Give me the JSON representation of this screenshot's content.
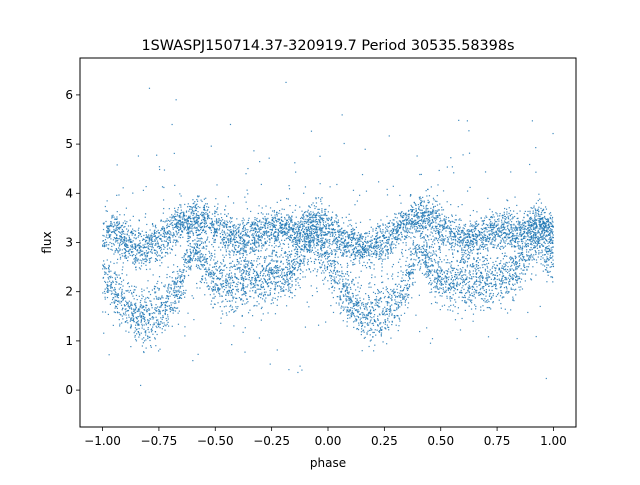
{
  "chart_data": {
    "type": "scatter",
    "title": "1SWASPJ150714.37-320919.7 Period 30535.58398s",
    "xlabel": "phase",
    "ylabel": "flux",
    "xlim": [
      -1.1,
      1.1
    ],
    "ylim": [
      -0.75,
      6.75
    ],
    "xticks": [
      -1.0,
      -0.75,
      -0.5,
      -0.25,
      0.0,
      0.25,
      0.5,
      0.75,
      1.0
    ],
    "xtick_labels": [
      "−1.00",
      "−0.75",
      "−0.50",
      "−0.25",
      "0.00",
      "0.25",
      "0.50",
      "0.75",
      "1.00"
    ],
    "yticks": [
      0,
      1,
      2,
      3,
      4,
      5,
      6
    ],
    "ytick_labels": [
      "0",
      "1",
      "2",
      "3",
      "4",
      "5",
      "6"
    ],
    "grid": false,
    "legend": "none",
    "marker_color": "#1f77b4",
    "series": [
      {
        "x": [
          -1.0,
          -0.95,
          -0.9,
          -0.85,
          -0.8,
          -0.75,
          -0.7,
          -0.65,
          -0.6,
          -0.55,
          -0.5,
          -0.45,
          -0.4,
          -0.35,
          -0.3,
          -0.25,
          -0.2,
          -0.15,
          -0.1,
          -0.05,
          0.0,
          0.05,
          0.1,
          0.15,
          0.2,
          0.25,
          0.3,
          0.35,
          0.4,
          0.45,
          0.5,
          0.55,
          0.6,
          0.65,
          0.7,
          0.75,
          0.8,
          0.85,
          0.9,
          0.95,
          1.0
        ],
        "upper_branch": [
          3.1,
          3.2,
          3.0,
          2.9,
          2.9,
          3.0,
          3.2,
          3.4,
          3.5,
          3.5,
          3.3,
          3.2,
          3.0,
          3.1,
          3.2,
          3.3,
          3.3,
          3.2,
          3.3,
          3.4,
          3.3,
          3.1,
          3.0,
          2.9,
          2.9,
          3.0,
          3.2,
          3.4,
          3.5,
          3.5,
          3.3,
          3.2,
          3.0,
          3.1,
          3.2,
          3.3,
          3.3,
          3.2,
          3.3,
          3.4,
          3.2
        ],
        "lower_branch": [
          2.4,
          2.0,
          1.7,
          1.5,
          1.5,
          1.6,
          1.8,
          2.2,
          3.0,
          2.6,
          2.2,
          2.1,
          2.2,
          2.2,
          2.2,
          2.3,
          2.3,
          2.5,
          3.0,
          3.1,
          2.6,
          2.2,
          1.8,
          1.6,
          1.5,
          1.6,
          1.8,
          2.2,
          3.0,
          2.6,
          2.2,
          2.1,
          2.2,
          2.2,
          2.2,
          2.3,
          2.3,
          2.5,
          3.0,
          3.1,
          2.6
        ]
      }
    ]
  }
}
